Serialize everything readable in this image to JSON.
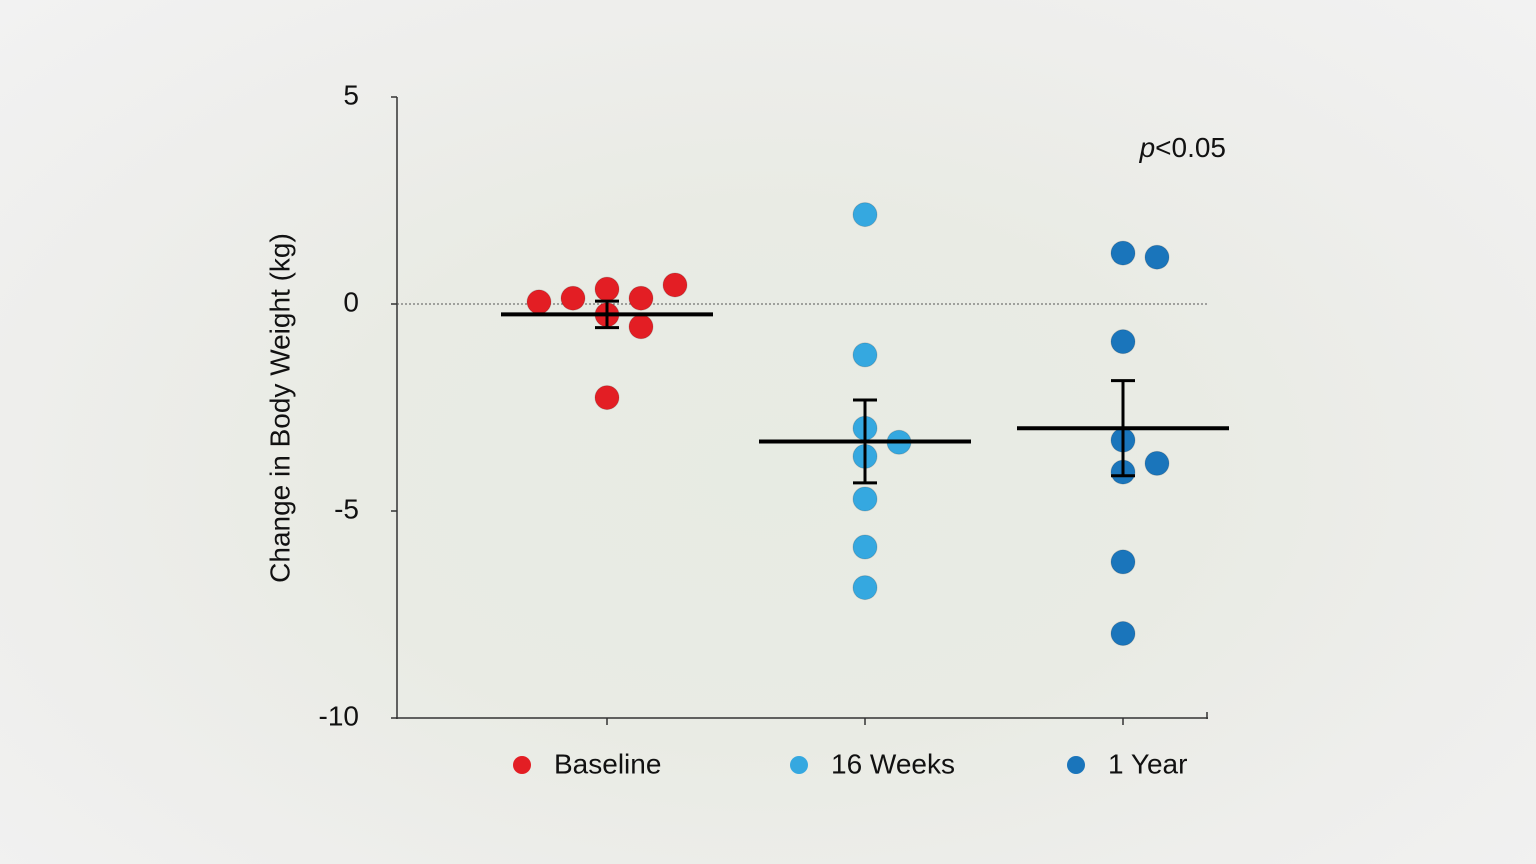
{
  "chart_data": {
    "type": "dot",
    "y_label": "Change in Body Weight (kg)",
    "annotation": "p<0.05",
    "ylim": [
      -10,
      5
    ],
    "yticks": [
      -10,
      -5,
      0,
      5
    ],
    "zero_line": true,
    "series": [
      {
        "name": "Baseline",
        "color": "#e31e24",
        "values": [
          -0.26,
          0.36,
          0.14,
          -0.55,
          -2.26,
          0.14,
          0.46,
          0.05
        ],
        "mean": -0.25,
        "error": 0.32
      },
      {
        "name": "16 Weeks",
        "color": "#35a8e0",
        "values": [
          2.16,
          -1.23,
          -3.0,
          -3.34,
          -3.68,
          -4.71,
          -5.87,
          -6.85
        ],
        "mean": -3.32,
        "error": 1.0
      },
      {
        "name": "1 Year",
        "color": "#1a75bb",
        "values": [
          1.23,
          1.13,
          -0.91,
          -3.29,
          -4.06,
          -3.85,
          -6.23,
          -7.96
        ],
        "mean": -3.0,
        "error": 1.15
      }
    ]
  }
}
